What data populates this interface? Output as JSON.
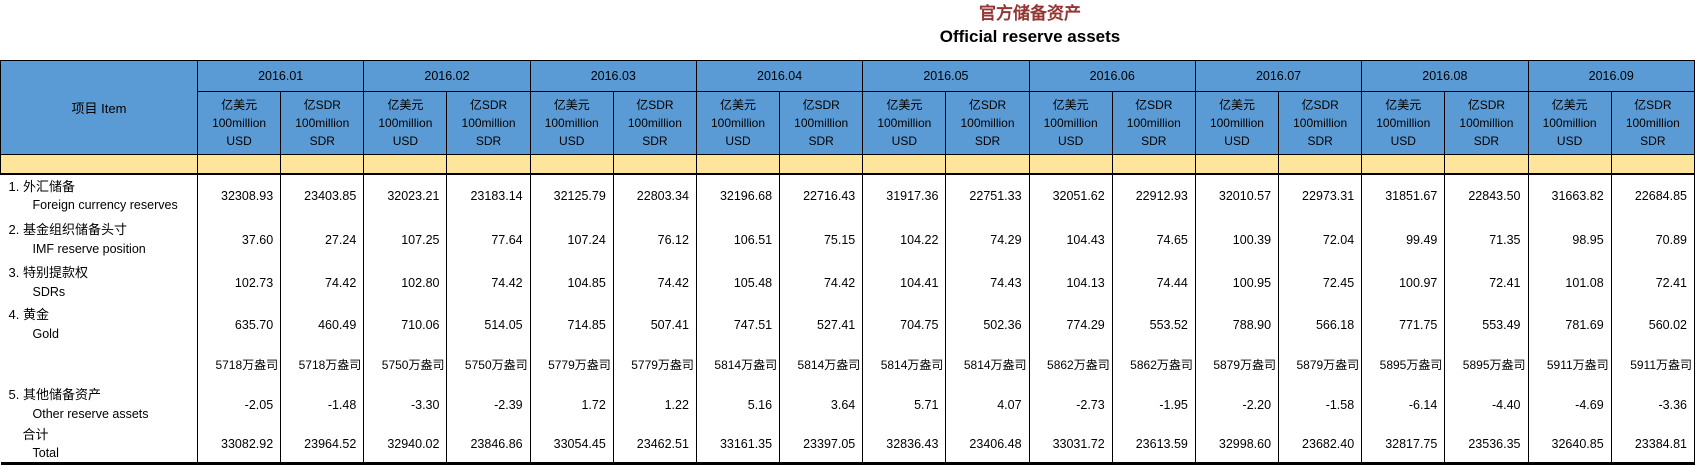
{
  "title": {
    "zh": "官方储备资产",
    "en": "Official reserve assets"
  },
  "colors": {
    "header_blue": "#5B9BD5",
    "band_yellow": "#FFE59B",
    "title_red": "#943634"
  },
  "table": {
    "item_header": "项目  Item",
    "months": [
      "2016.01",
      "2016.02",
      "2016.03",
      "2016.04",
      "2016.05",
      "2016.06",
      "2016.07",
      "2016.08",
      "2016.09"
    ],
    "unit_usd": {
      "l1": "亿美元",
      "l2": "100million",
      "l3": "USD"
    },
    "unit_sdr": {
      "l1": "亿SDR",
      "l2": "100million",
      "l3": "SDR"
    },
    "rows": [
      {
        "no": "1.",
        "zh": "外汇储备",
        "en": "Foreign currency reserves",
        "values": [
          "32308.93",
          "23403.85",
          "32023.21",
          "23183.14",
          "32125.79",
          "22803.34",
          "32196.68",
          "22716.43",
          "31917.36",
          "22751.33",
          "32051.62",
          "22912.93",
          "32010.57",
          "22973.31",
          "31851.67",
          "22843.50",
          "31663.82",
          "22684.85"
        ]
      },
      {
        "no": "2.",
        "zh": "基金组织储备头寸",
        "en": "IMF reserve position",
        "values": [
          "37.60",
          "27.24",
          "107.25",
          "77.64",
          "107.24",
          "76.12",
          "106.51",
          "75.15",
          "104.22",
          "74.29",
          "104.43",
          "74.65",
          "100.39",
          "72.04",
          "99.49",
          "71.35",
          "98.95",
          "70.89"
        ]
      },
      {
        "no": "3.",
        "zh": "特别提款权",
        "en": "SDRs",
        "values": [
          "102.73",
          "74.42",
          "102.80",
          "74.42",
          "104.85",
          "74.42",
          "105.48",
          "74.42",
          "104.41",
          "74.43",
          "104.13",
          "74.44",
          "100.95",
          "72.45",
          "100.97",
          "72.41",
          "101.08",
          "72.41"
        ]
      },
      {
        "no": "4.",
        "zh": "黄金",
        "en": "Gold",
        "values": [
          "635.70",
          "460.49",
          "710.06",
          "514.05",
          "714.85",
          "507.41",
          "747.51",
          "527.41",
          "704.75",
          "502.36",
          "774.29",
          "553.52",
          "788.90",
          "566.18",
          "771.75",
          "553.49",
          "781.69",
          "560.02"
        ],
        "sub_values": [
          "5718万盎司",
          "5718万盎司",
          "5750万盎司",
          "5750万盎司",
          "5779万盎司",
          "5779万盎司",
          "5814万盎司",
          "5814万盎司",
          "5814万盎司",
          "5814万盎司",
          "5862万盎司",
          "5862万盎司",
          "5879万盎司",
          "5879万盎司",
          "5895万盎司",
          "5895万盎司",
          "5911万盎司",
          "5911万盎司"
        ]
      },
      {
        "no": "5.",
        "zh": "其他储备资产",
        "en": "Other reserve assets",
        "values": [
          "-2.05",
          "-1.48",
          "-3.30",
          "-2.39",
          "1.72",
          "1.22",
          "5.16",
          "3.64",
          "5.71",
          "4.07",
          "-2.73",
          "-1.95",
          "-2.20",
          "-1.58",
          "-6.14",
          "-4.40",
          "-4.69",
          "-3.36"
        ]
      },
      {
        "no": "",
        "zh": "合计",
        "en": "Total",
        "is_total": true,
        "values": [
          "33082.92",
          "23964.52",
          "32940.02",
          "23846.86",
          "33054.45",
          "23462.51",
          "33161.35",
          "23397.05",
          "32836.43",
          "23406.48",
          "33031.72",
          "23613.59",
          "32998.60",
          "23682.40",
          "32817.75",
          "23536.35",
          "32640.85",
          "23384.81"
        ]
      }
    ]
  }
}
